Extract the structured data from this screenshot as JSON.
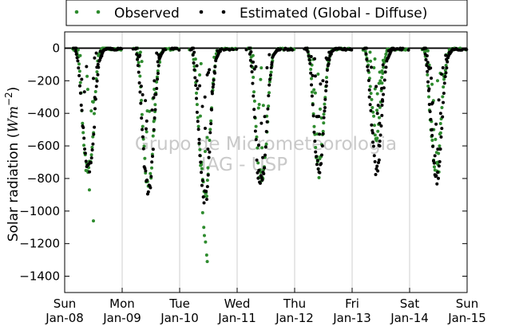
{
  "chart_data": {
    "type": "scatter",
    "ylabel": "Solar radiation (",
    "ylabel_unit_base": "Wm",
    "ylabel_unit_exp": "−2",
    "ylabel_close": ")",
    "ylim": [
      -1500,
      100
    ],
    "yticks": [
      0,
      -200,
      -400,
      -600,
      -800,
      -1000,
      -1200,
      -1400
    ],
    "ytick_labels": [
      "0",
      "−200",
      "−400",
      "−600",
      "−800",
      "−1000",
      "−1200",
      "−1400"
    ],
    "x_range": [
      "2015-01-08",
      "2015-01-15"
    ],
    "xticks": [
      {
        "day": "Sun",
        "date": "Jan-08"
      },
      {
        "day": "Mon",
        "date": "Jan-09"
      },
      {
        "day": "Tue",
        "date": "Jan-10"
      },
      {
        "day": "Wed",
        "date": "Jan-11"
      },
      {
        "day": "Thu",
        "date": "Jan-12"
      },
      {
        "day": "Fri",
        "date": "Jan-13"
      },
      {
        "day": "Sat",
        "date": "Jan-14"
      },
      {
        "day": "Sun",
        "date": "Jan-15"
      }
    ],
    "grid": "vertical",
    "zero_line": true,
    "legend_placement": "top-center, outside",
    "watermark": [
      "Grupo de Micrometeorologia",
      "IAG - USP"
    ],
    "series": [
      {
        "name": "Observed",
        "color": "#2e8b2e",
        "days": [
          {
            "dayIndex": 0,
            "shape": [
              [
                0.19,
                0
              ],
              [
                0.24,
                -60
              ],
              [
                0.27,
                -180
              ],
              [
                0.3,
                -380
              ],
              [
                0.33,
                -560
              ],
              [
                0.36,
                -700
              ],
              [
                0.4,
                -740
              ],
              [
                0.44,
                -720
              ],
              [
                0.48,
                -640
              ],
              [
                0.53,
                -300
              ],
              [
                0.58,
                -50
              ],
              [
                0.65,
                0
              ],
              [
                0.75,
                0
              ]
            ],
            "extra": [
              [
                0.43,
                -870
              ],
              [
                0.5,
                -1060
              ]
            ]
          },
          {
            "dayIndex": 1,
            "shape": [
              [
                0.25,
                0
              ],
              [
                0.3,
                -120
              ],
              [
                0.35,
                -420
              ],
              [
                0.4,
                -730
              ],
              [
                0.45,
                -860
              ],
              [
                0.5,
                -800
              ],
              [
                0.55,
                -500
              ],
              [
                0.6,
                -200
              ],
              [
                0.66,
                -40
              ],
              [
                0.75,
                0
              ]
            ],
            "extra": [
              [
                0.55,
                -450
              ]
            ]
          },
          {
            "dayIndex": 2,
            "shape": [
              [
                0.22,
                0
              ],
              [
                0.27,
                -150
              ],
              [
                0.32,
                -450
              ],
              [
                0.37,
                -720
              ],
              [
                0.42,
                -900
              ],
              [
                0.47,
                -880
              ],
              [
                0.52,
                -600
              ],
              [
                0.57,
                -250
              ],
              [
                0.63,
                -60
              ],
              [
                0.72,
                0
              ]
            ],
            "extra": [
              [
                0.4,
                -1010
              ],
              [
                0.42,
                -1100
              ],
              [
                0.43,
                -1150
              ],
              [
                0.45,
                -1190
              ],
              [
                0.47,
                -1270
              ],
              [
                0.48,
                -1310
              ],
              [
                0.38,
                -700
              ],
              [
                0.36,
                -660
              ]
            ]
          },
          {
            "dayIndex": 3,
            "shape": [
              [
                0.22,
                0
              ],
              [
                0.27,
                -120
              ],
              [
                0.32,
                -450
              ],
              [
                0.37,
                -760
              ],
              [
                0.42,
                -790
              ],
              [
                0.47,
                -760
              ],
              [
                0.52,
                -500
              ],
              [
                0.57,
                -200
              ],
              [
                0.63,
                -40
              ],
              [
                0.72,
                0
              ]
            ],
            "extra": []
          },
          {
            "dayIndex": 4,
            "shape": [
              [
                0.22,
                0
              ],
              [
                0.27,
                -80
              ],
              [
                0.32,
                -350
              ],
              [
                0.37,
                -640
              ],
              [
                0.42,
                -760
              ],
              [
                0.47,
                -640
              ],
              [
                0.52,
                -350
              ],
              [
                0.57,
                -120
              ],
              [
                0.63,
                -20
              ],
              [
                0.72,
                0
              ]
            ],
            "extra": []
          },
          {
            "dayIndex": 5,
            "shape": [
              [
                0.22,
                0
              ],
              [
                0.28,
                -100
              ],
              [
                0.33,
                -300
              ],
              [
                0.38,
                -450
              ],
              [
                0.42,
                -560
              ],
              [
                0.46,
                -480
              ],
              [
                0.5,
                -300
              ],
              [
                0.54,
                -120
              ],
              [
                0.6,
                -20
              ],
              [
                0.7,
                0
              ]
            ],
            "extra": [
              [
                0.32,
                -80
              ],
              [
                0.38,
                -120
              ],
              [
                0.4,
                -250
              ],
              [
                0.44,
                -280
              ],
              [
                0.49,
                -200
              ],
              [
                0.52,
                -140
              ],
              [
                0.56,
                -80
              ]
            ]
          },
          {
            "dayIndex": 6,
            "shape": [
              [
                0.25,
                0
              ],
              [
                0.3,
                -100
              ],
              [
                0.35,
                -400
              ],
              [
                0.4,
                -620
              ],
              [
                0.45,
                -760
              ],
              [
                0.5,
                -680
              ],
              [
                0.55,
                -420
              ],
              [
                0.6,
                -180
              ],
              [
                0.66,
                -40
              ],
              [
                0.75,
                0
              ]
            ],
            "extra": [
              [
                0.38,
                -450
              ],
              [
                0.42,
                -500
              ],
              [
                0.45,
                -560
              ],
              [
                0.47,
                -640
              ],
              [
                0.49,
                -700
              ],
              [
                0.51,
                -760
              ],
              [
                0.52,
                -600
              ],
              [
                0.54,
                -520
              ]
            ]
          }
        ]
      },
      {
        "name": "Estimated (Global - Diffuse)",
        "color": "#000000",
        "days": [
          {
            "dayIndex": 0,
            "shape": [
              [
                0.18,
                0
              ],
              [
                0.23,
                -80
              ],
              [
                0.27,
                -250
              ],
              [
                0.31,
                -450
              ],
              [
                0.35,
                -620
              ],
              [
                0.39,
                -720
              ],
              [
                0.43,
                -730
              ],
              [
                0.47,
                -680
              ],
              [
                0.51,
                -500
              ],
              [
                0.55,
                -250
              ],
              [
                0.6,
                -80
              ],
              [
                0.68,
                -10
              ],
              [
                0.8,
                0
              ]
            ],
            "extra": [
              [
                0.52,
                -60
              ],
              [
                0.55,
                -30
              ],
              [
                0.58,
                -100
              ],
              [
                0.62,
                -20
              ]
            ]
          },
          {
            "dayIndex": 1,
            "shape": [
              [
                0.24,
                0
              ],
              [
                0.29,
                -150
              ],
              [
                0.34,
                -450
              ],
              [
                0.39,
                -740
              ],
              [
                0.44,
                -860
              ],
              [
                0.49,
                -850
              ],
              [
                0.54,
                -600
              ],
              [
                0.59,
                -280
              ],
              [
                0.65,
                -60
              ],
              [
                0.74,
                0
              ]
            ],
            "extra": [
              [
                0.52,
                -380
              ],
              [
                0.56,
                -200
              ],
              [
                0.6,
                -30
              ]
            ]
          },
          {
            "dayIndex": 2,
            "shape": [
              [
                0.22,
                0
              ],
              [
                0.27,
                -180
              ],
              [
                0.32,
                -480
              ],
              [
                0.37,
                -740
              ],
              [
                0.42,
                -920
              ],
              [
                0.47,
                -900
              ],
              [
                0.52,
                -620
              ],
              [
                0.57,
                -260
              ],
              [
                0.63,
                -70
              ],
              [
                0.72,
                0
              ]
            ],
            "extra": [
              [
                0.3,
                -200
              ],
              [
                0.34,
                -560
              ],
              [
                0.44,
                -300
              ],
              [
                0.5,
                -150
              ]
            ]
          },
          {
            "dayIndex": 3,
            "shape": [
              [
                0.21,
                0
              ],
              [
                0.26,
                -150
              ],
              [
                0.31,
                -470
              ],
              [
                0.36,
                -770
              ],
              [
                0.41,
                -800
              ],
              [
                0.46,
                -770
              ],
              [
                0.51,
                -520
              ],
              [
                0.56,
                -220
              ],
              [
                0.62,
                -50
              ],
              [
                0.72,
                0
              ]
            ],
            "extra": [
              [
                0.48,
                -420
              ],
              [
                0.52,
                -120
              ],
              [
                0.56,
                -40
              ]
            ]
          },
          {
            "dayIndex": 4,
            "shape": [
              [
                0.22,
                0
              ],
              [
                0.27,
                -100
              ],
              [
                0.32,
                -380
              ],
              [
                0.37,
                -660
              ],
              [
                0.42,
                -760
              ],
              [
                0.47,
                -660
              ],
              [
                0.52,
                -380
              ],
              [
                0.57,
                -130
              ],
              [
                0.63,
                -25
              ],
              [
                0.72,
                0
              ]
            ],
            "extra": [
              [
                0.4,
                -420
              ],
              [
                0.45,
                -220
              ],
              [
                0.55,
                -60
              ]
            ]
          },
          {
            "dayIndex": 5,
            "shape": [
              [
                0.23,
                0
              ],
              [
                0.28,
                -150
              ],
              [
                0.33,
                -420
              ],
              [
                0.38,
                -650
              ],
              [
                0.42,
                -780
              ],
              [
                0.46,
                -720
              ],
              [
                0.5,
                -500
              ],
              [
                0.54,
                -280
              ],
              [
                0.6,
                -80
              ],
              [
                0.7,
                0
              ]
            ],
            "extra": [
              [
                0.3,
                -300
              ],
              [
                0.36,
                -520
              ],
              [
                0.44,
                -400
              ],
              [
                0.48,
                -600
              ],
              [
                0.52,
                -350
              ]
            ]
          },
          {
            "dayIndex": 6,
            "shape": [
              [
                0.26,
                0
              ],
              [
                0.31,
                -150
              ],
              [
                0.36,
                -420
              ],
              [
                0.41,
                -640
              ],
              [
                0.46,
                -820
              ],
              [
                0.51,
                -750
              ],
              [
                0.56,
                -480
              ],
              [
                0.61,
                -200
              ],
              [
                0.67,
                -50
              ],
              [
                0.76,
                0
              ]
            ],
            "extra": [
              [
                0.34,
                -250
              ],
              [
                0.39,
                -500
              ],
              [
                0.44,
                -660
              ],
              [
                0.49,
                -620
              ],
              [
                0.54,
                -400
              ],
              [
                0.58,
                -120
              ]
            ]
          }
        ]
      }
    ]
  }
}
